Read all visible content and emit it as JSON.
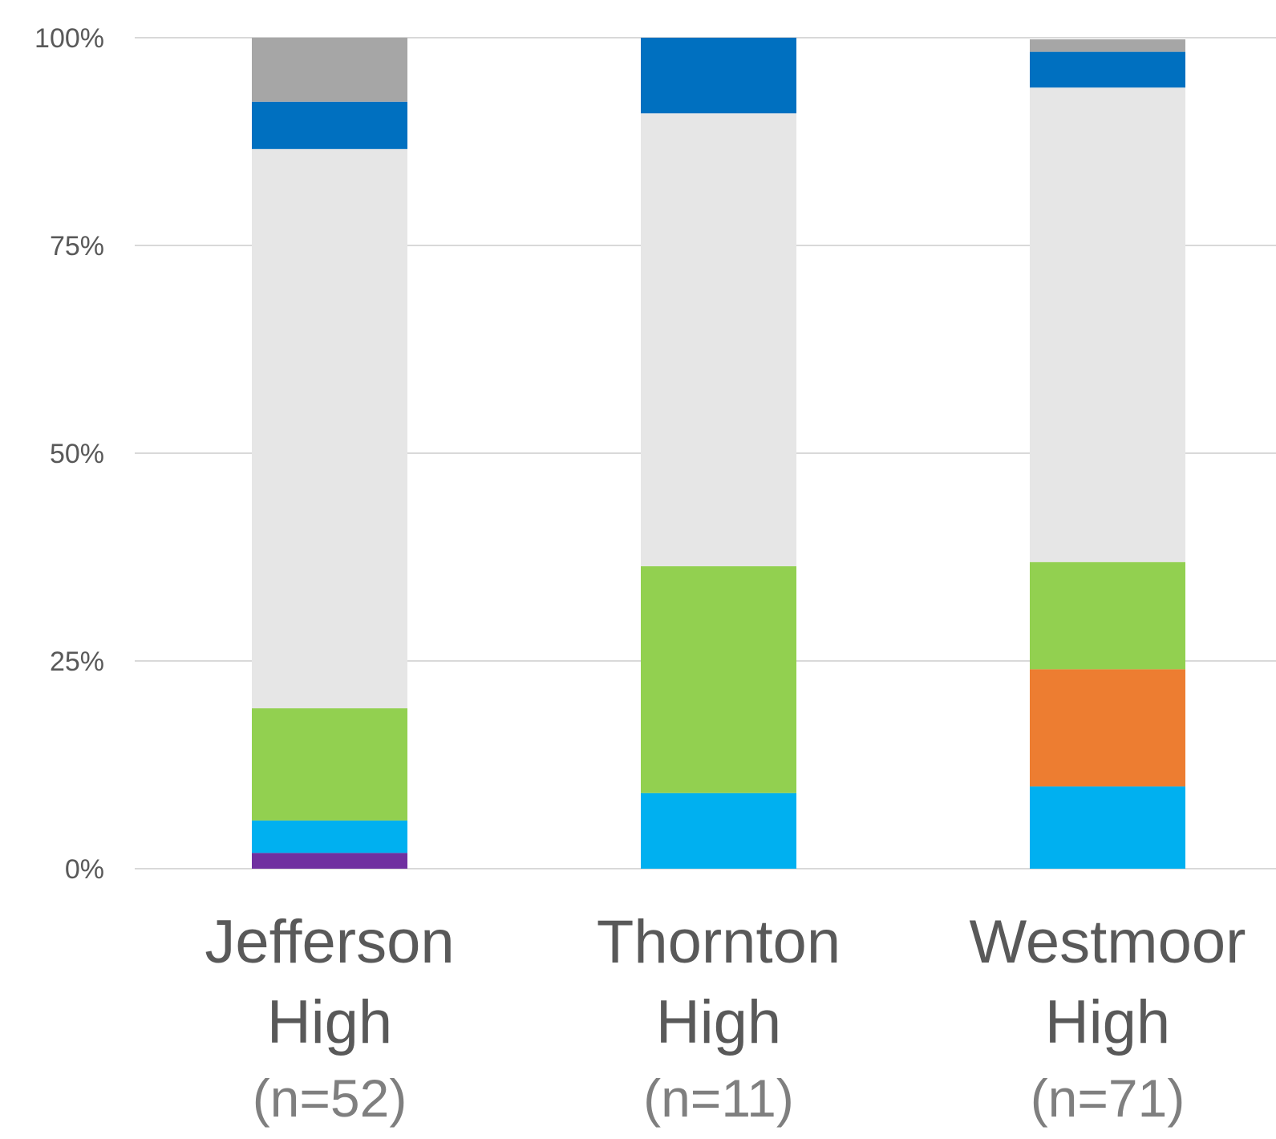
{
  "chart_data": {
    "type": "bar",
    "stacked": true,
    "percent_stacked": true,
    "title": "",
    "xlabel": "",
    "ylabel": "",
    "ylim": [
      0,
      100
    ],
    "yticks": [
      0,
      25,
      50,
      75,
      100
    ],
    "ytick_labels": [
      "0%",
      "25%",
      "50%",
      "75%",
      "100%"
    ],
    "grid": true,
    "legend": "none",
    "categories": [
      {
        "name_lines": [
          "Jefferson",
          "High"
        ],
        "n_label": "(n=52)"
      },
      {
        "name_lines": [
          "Thornton",
          "High"
        ],
        "n_label": "(n=11)"
      },
      {
        "name_lines": [
          "Westmoor",
          "High"
        ],
        "n_label": "(n=71)"
      }
    ],
    "series": [
      {
        "color": "#7030a0",
        "values": [
          1.9,
          0,
          0
        ]
      },
      {
        "color": "#00b0f0",
        "values": [
          3.9,
          9.1,
          9.9
        ]
      },
      {
        "color": "#ed7d31",
        "values": [
          0,
          0,
          14.1
        ]
      },
      {
        "color": "#92d050",
        "values": [
          13.5,
          27.3,
          12.9
        ]
      },
      {
        "color": "#e6e6e6",
        "values": [
          67.3,
          54.5,
          57.1
        ]
      },
      {
        "color": "#0070c0",
        "values": [
          5.7,
          9.1,
          4.3
        ]
      },
      {
        "color": "#a6a6a6",
        "values": [
          7.7,
          0,
          1.5
        ]
      }
    ]
  }
}
